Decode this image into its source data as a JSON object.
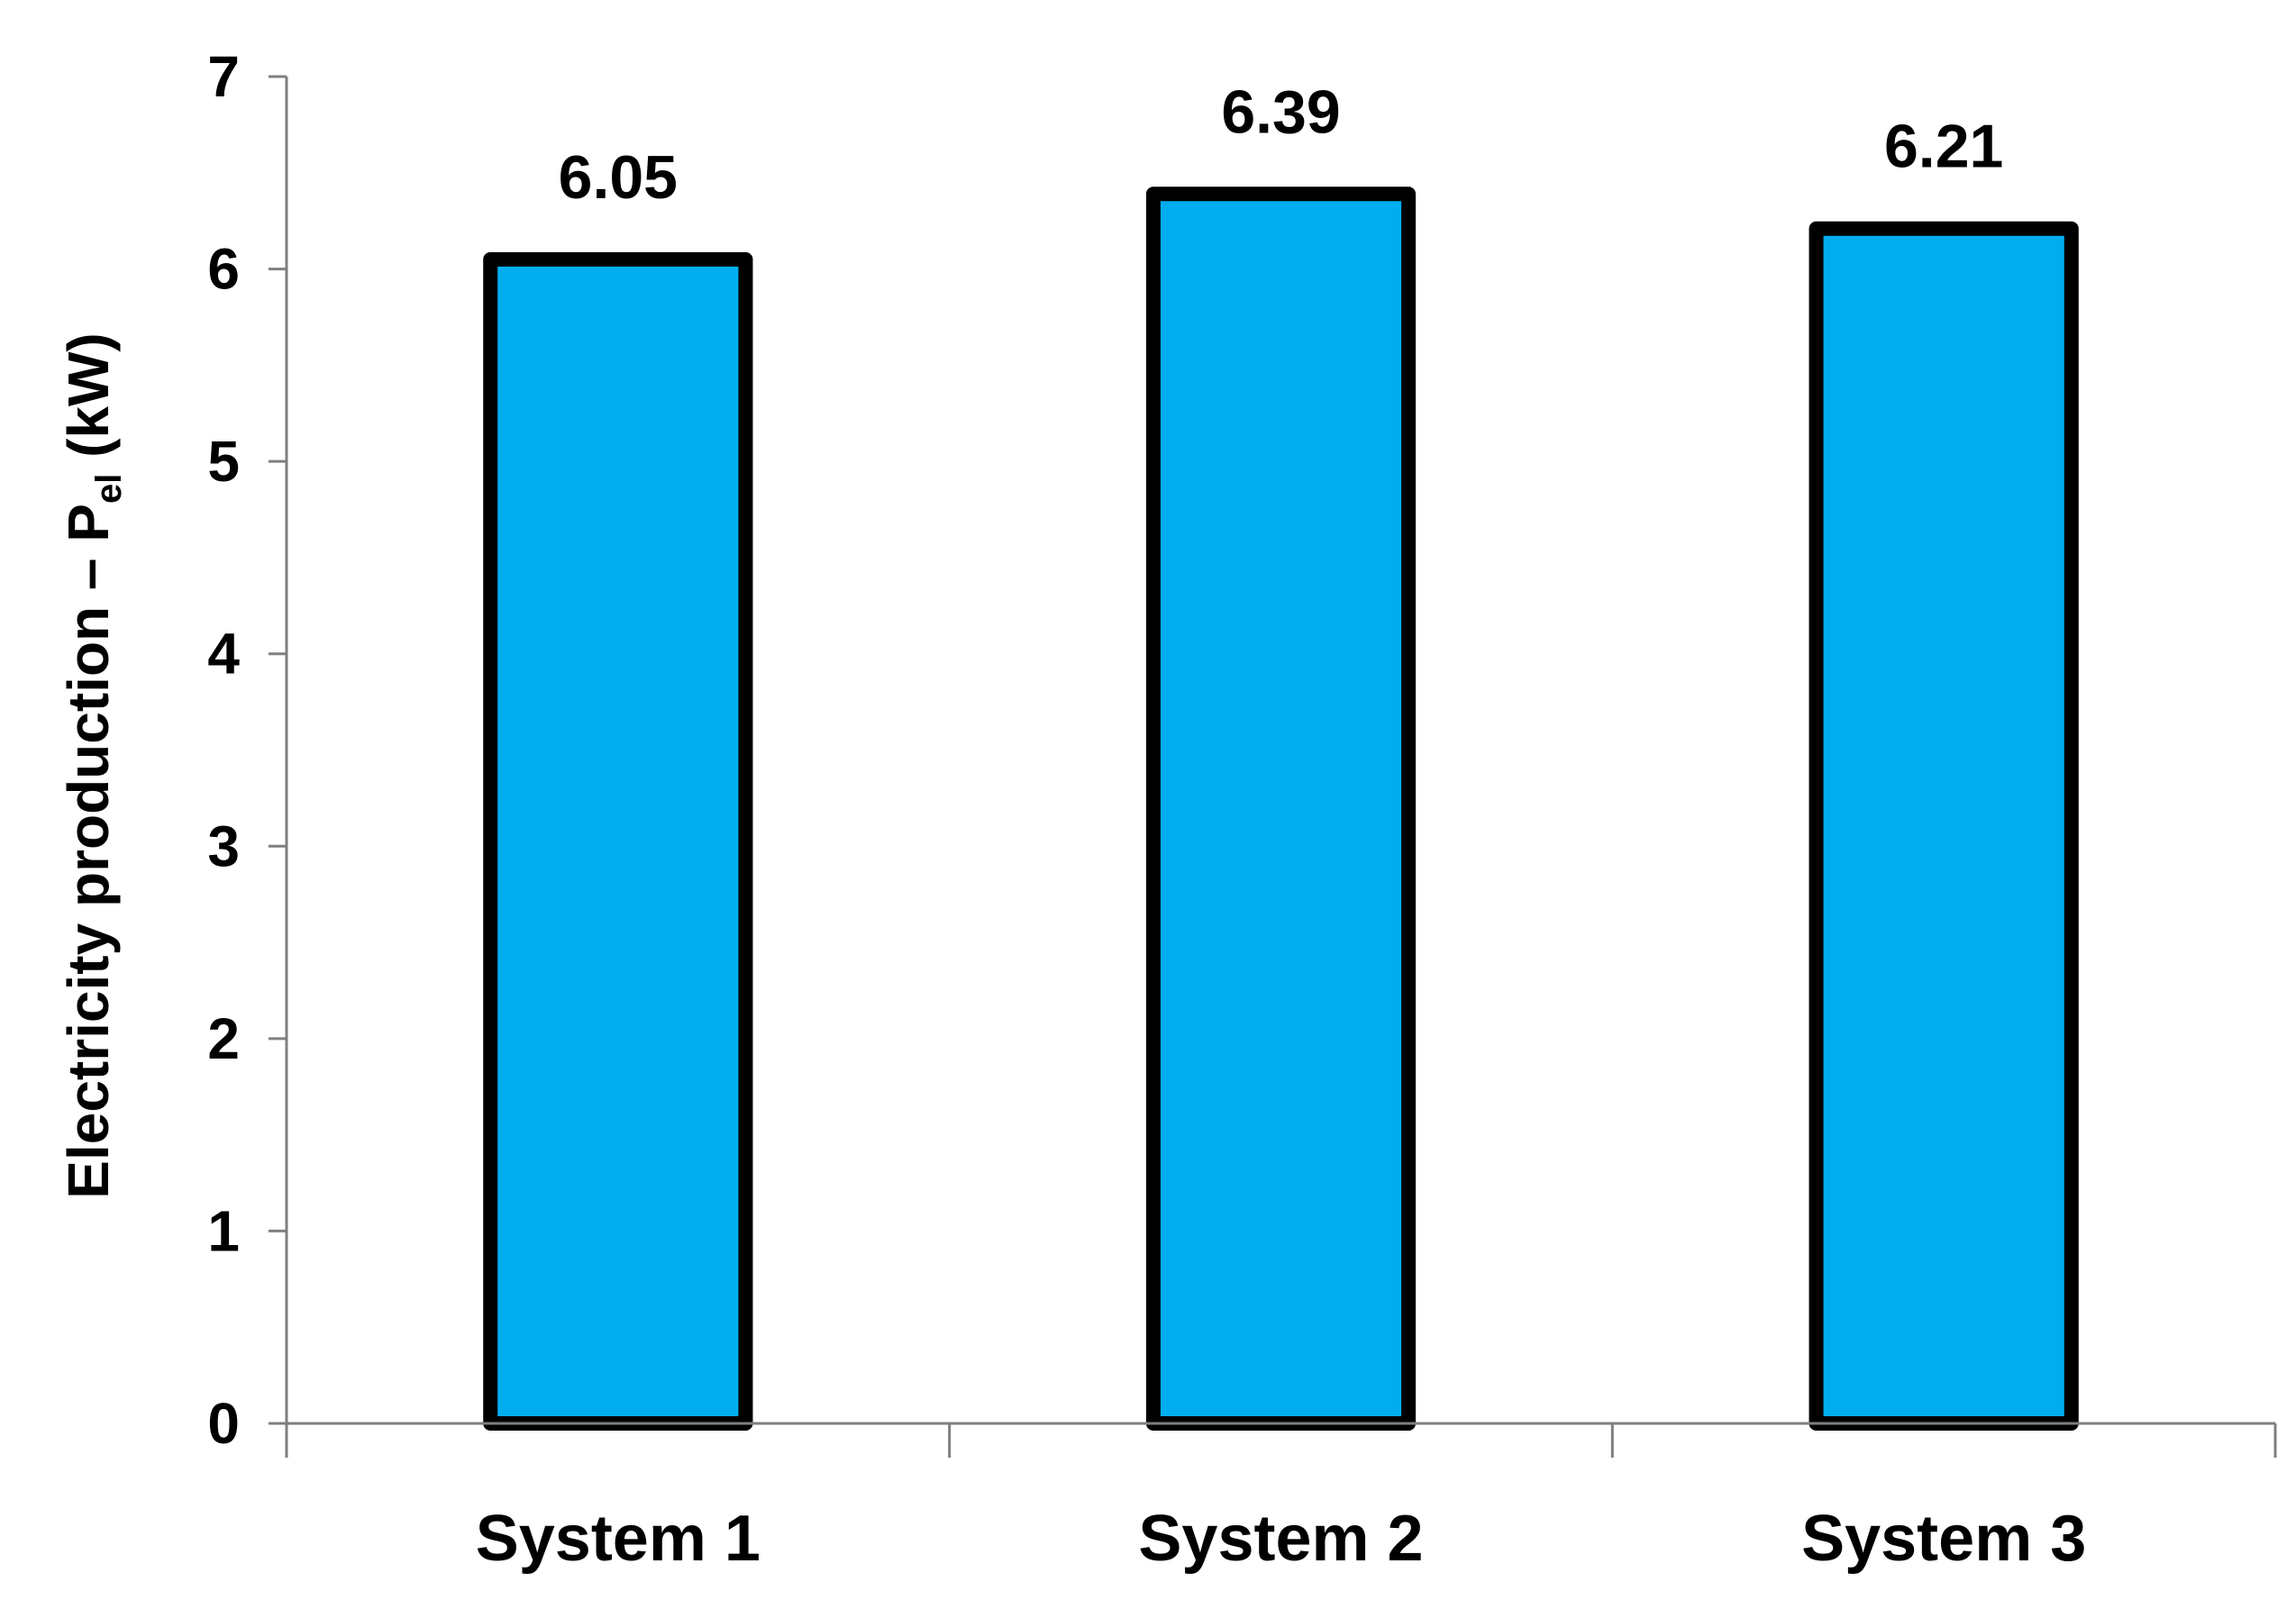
{
  "chart_data": {
    "type": "bar",
    "categories": [
      "System 1",
      "System 2",
      "System 3"
    ],
    "values": [
      6.05,
      6.39,
      6.21
    ],
    "value_labels": [
      "6.05",
      "6.39",
      "6.21"
    ],
    "xlabel": "",
    "ylabel": {
      "main": "Electricity production – P",
      "subscript": "el",
      "suffix": " (kW)"
    },
    "ylim": [
      0,
      7
    ],
    "yticks": [
      "0",
      "1",
      "2",
      "3",
      "4",
      "5",
      "6",
      "7"
    ],
    "grid": false,
    "legend": "none",
    "colors": {
      "bar_fill": "#00AEEF",
      "bar_stroke": "#000000",
      "axis": "#7f7f7f"
    }
  }
}
